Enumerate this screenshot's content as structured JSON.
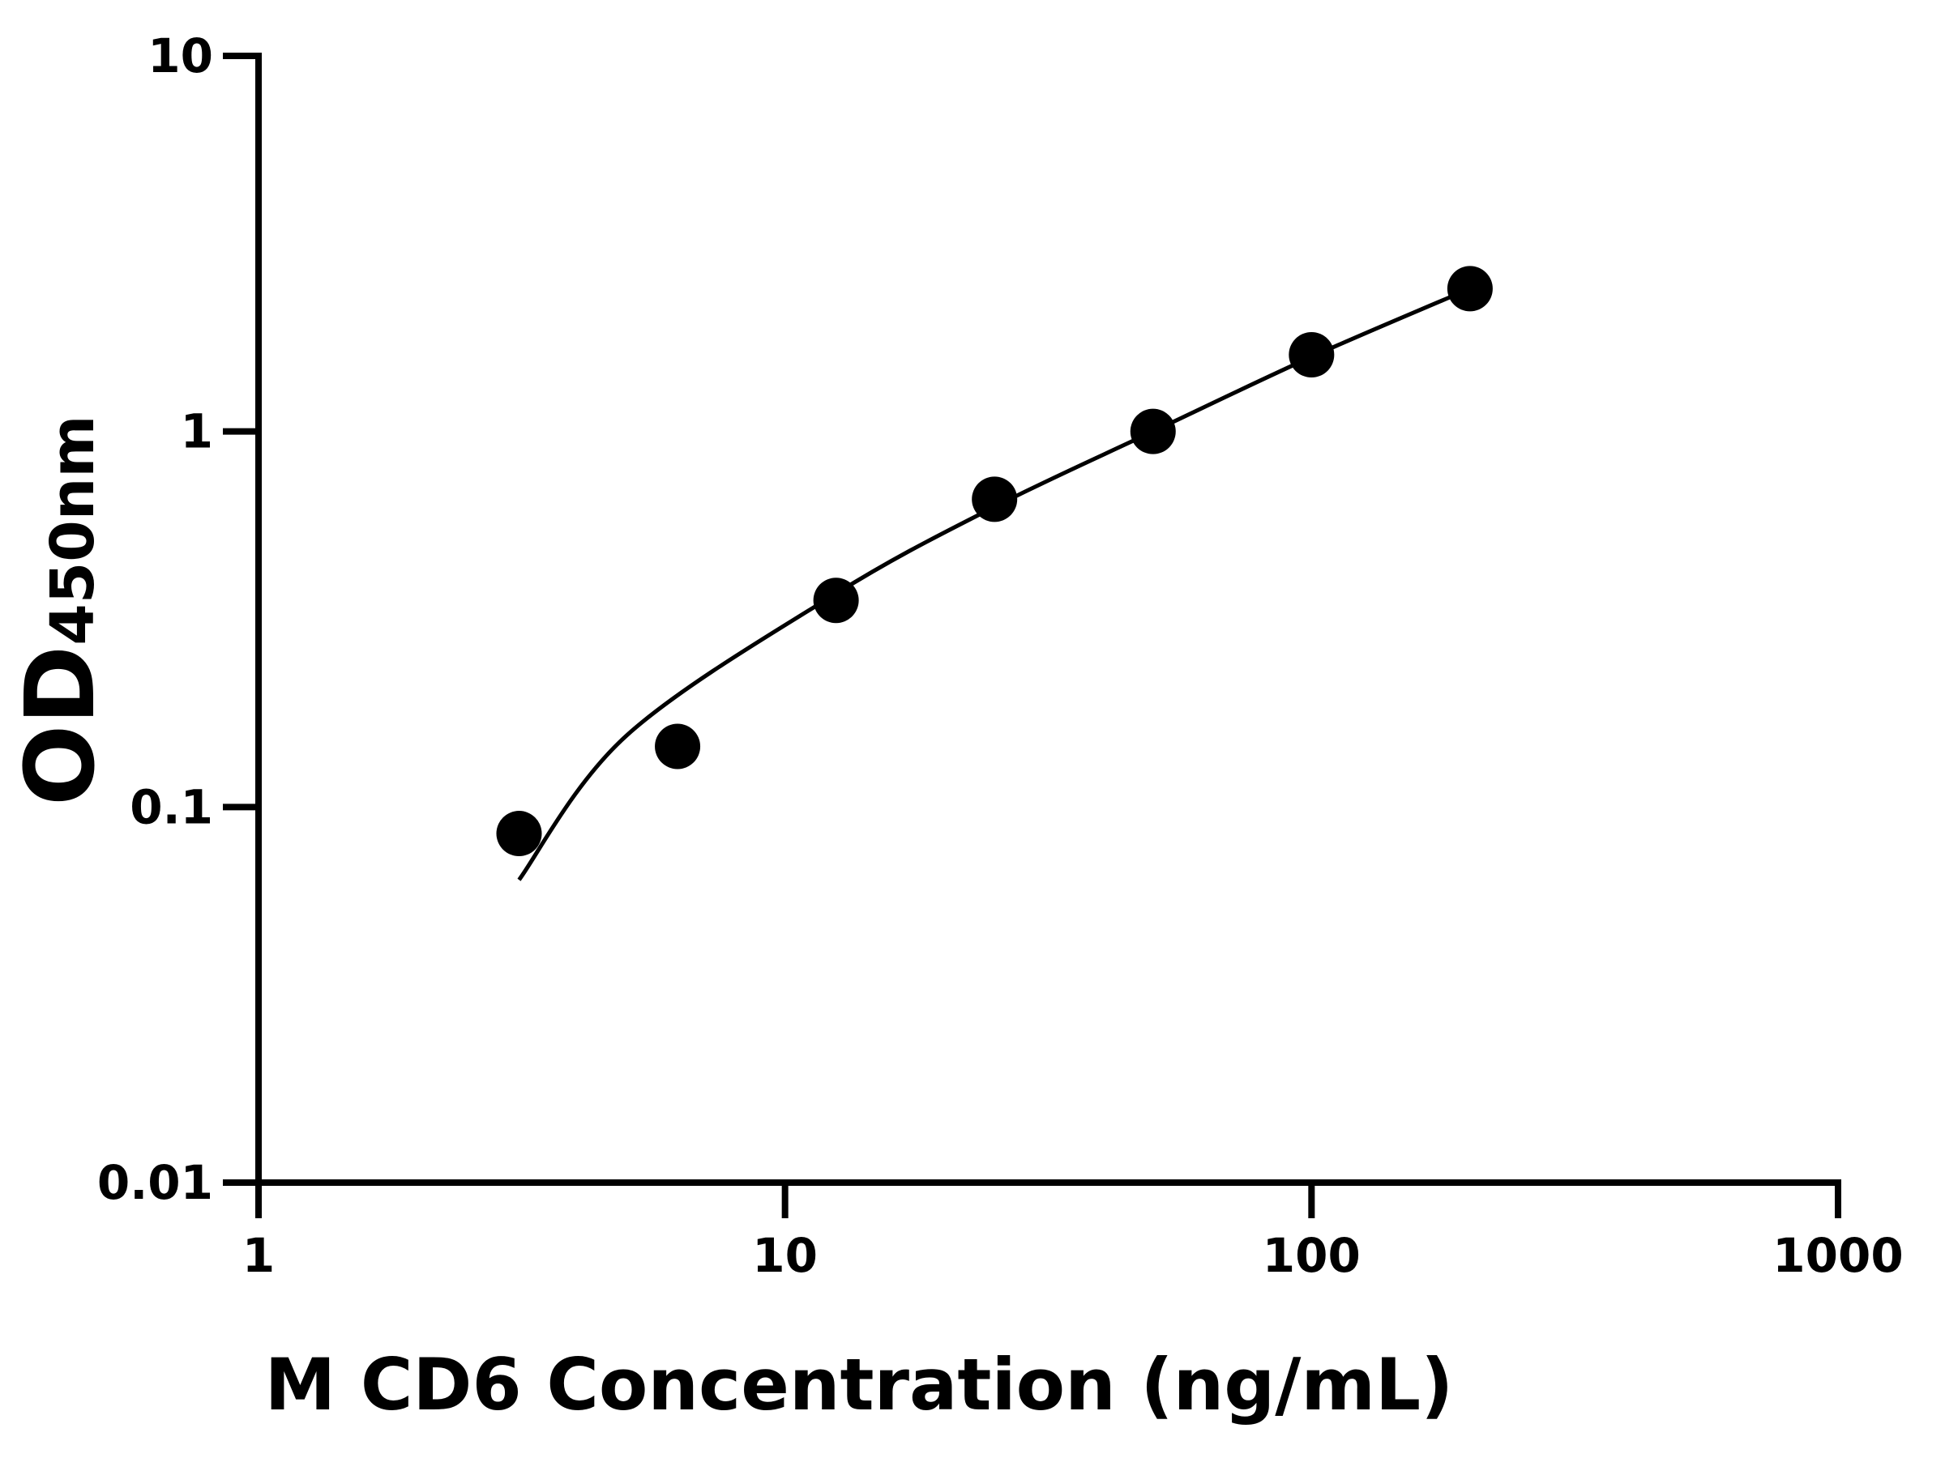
{
  "chart_data": {
    "type": "scatter",
    "xlabel": "M CD6 Concentration (ng/mL)",
    "ylabel_main": "OD",
    "ylabel_sub": "450nm",
    "x_scale": "log",
    "y_scale": "log",
    "xlim": [
      1,
      1000
    ],
    "ylim": [
      0.01,
      10
    ],
    "x_ticks": [
      1,
      10,
      100,
      1000
    ],
    "x_tick_labels": [
      "1",
      "10",
      "100",
      "1000"
    ],
    "y_ticks": [
      0.01,
      0.1,
      1,
      10
    ],
    "y_tick_labels": [
      "0.01",
      "0.1",
      "1",
      "10"
    ],
    "grid": false,
    "color": "#000000",
    "points": [
      {
        "x": 3.125,
        "y": 0.085
      },
      {
        "x": 6.25,
        "y": 0.145
      },
      {
        "x": 12.5,
        "y": 0.355
      },
      {
        "x": 25,
        "y": 0.66
      },
      {
        "x": 50,
        "y": 1.0
      },
      {
        "x": 100,
        "y": 1.6
      },
      {
        "x": 200,
        "y": 2.4
      }
    ],
    "fit_curve": [
      {
        "x": 3.125,
        "y": 0.064
      },
      {
        "x": 5,
        "y": 0.155
      },
      {
        "x": 12.5,
        "y": 0.37
      },
      {
        "x": 25,
        "y": 0.63
      },
      {
        "x": 50,
        "y": 1.0
      },
      {
        "x": 100,
        "y": 1.58
      },
      {
        "x": 200,
        "y": 2.4
      }
    ]
  }
}
